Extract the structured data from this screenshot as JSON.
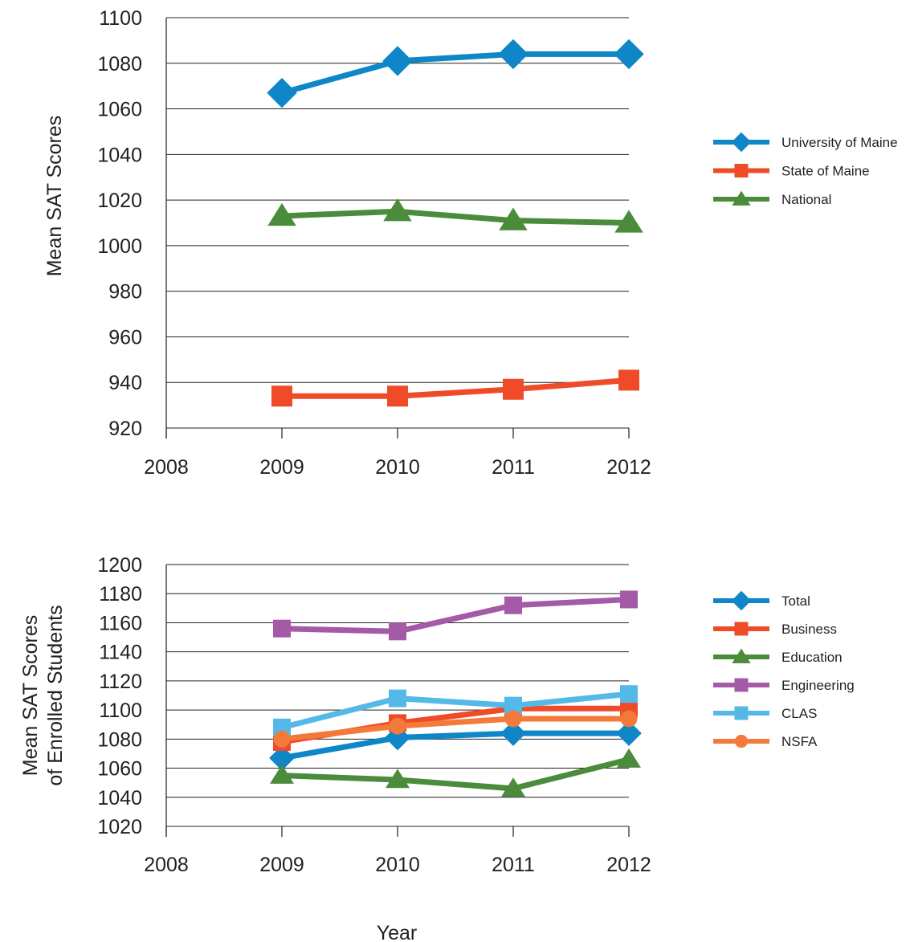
{
  "chart_data": [
    {
      "type": "line",
      "ylabel": "Mean SAT Scores",
      "xlabel": "",
      "x": [
        "2008",
        "2009",
        "2010",
        "2011",
        "2012"
      ],
      "xlim": [
        2008,
        2012
      ],
      "ylim": [
        920,
        1100
      ],
      "yticks": [
        920,
        940,
        960,
        980,
        1000,
        1020,
        1040,
        1060,
        1080,
        1100
      ],
      "grid": "horizontal",
      "legend": "right",
      "series": [
        {
          "name": "University of Maine",
          "color": "#0e86c7",
          "marker": "diamond",
          "x": [
            2009,
            2010,
            2011,
            2012
          ],
          "values": [
            1067,
            1081,
            1084,
            1084
          ]
        },
        {
          "name": "State of Maine",
          "color": "#ef4b29",
          "marker": "square",
          "x": [
            2009,
            2010,
            2011,
            2012
          ],
          "values": [
            934,
            934,
            937,
            941
          ]
        },
        {
          "name": "National",
          "color": "#4a8c3b",
          "marker": "triangle",
          "x": [
            2009,
            2010,
            2011,
            2012
          ],
          "values": [
            1013,
            1015,
            1011,
            1010
          ]
        }
      ]
    },
    {
      "type": "line",
      "ylabel": "Mean SAT Scores\nof Enrolled Students",
      "xlabel": "Year",
      "x": [
        "2008",
        "2009",
        "2010",
        "2011",
        "2012"
      ],
      "xlim": [
        2008,
        2012
      ],
      "ylim": [
        1020,
        1200
      ],
      "yticks": [
        1020,
        1040,
        1060,
        1080,
        1100,
        1120,
        1140,
        1160,
        1180,
        1200
      ],
      "grid": "horizontal",
      "legend": "right",
      "series": [
        {
          "name": "Total",
          "color": "#0e86c7",
          "marker": "diamond",
          "x": [
            2009,
            2010,
            2011,
            2012
          ],
          "values": [
            1067,
            1081,
            1084,
            1084
          ]
        },
        {
          "name": "Business",
          "color": "#ef4b29",
          "marker": "square",
          "x": [
            2009,
            2010,
            2011,
            2012
          ],
          "values": [
            1078,
            1091,
            1101,
            1101
          ]
        },
        {
          "name": "Education",
          "color": "#4a8c3b",
          "marker": "triangle",
          "x": [
            2009,
            2010,
            2011,
            2012
          ],
          "values": [
            1055,
            1052,
            1046,
            1066
          ]
        },
        {
          "name": "Engineering",
          "color": "#a55aa8",
          "marker": "square",
          "x": [
            2009,
            2010,
            2011,
            2012
          ],
          "values": [
            1156,
            1154,
            1172,
            1176
          ]
        },
        {
          "name": "CLAS",
          "color": "#55b9e8",
          "marker": "square",
          "x": [
            2009,
            2010,
            2011,
            2012
          ],
          "values": [
            1088,
            1108,
            1103,
            1111
          ]
        },
        {
          "name": "NSFA",
          "color": "#f37a3b",
          "marker": "circle",
          "x": [
            2009,
            2010,
            2011,
            2012
          ],
          "values": [
            1080,
            1089,
            1094,
            1094
          ]
        }
      ]
    }
  ]
}
